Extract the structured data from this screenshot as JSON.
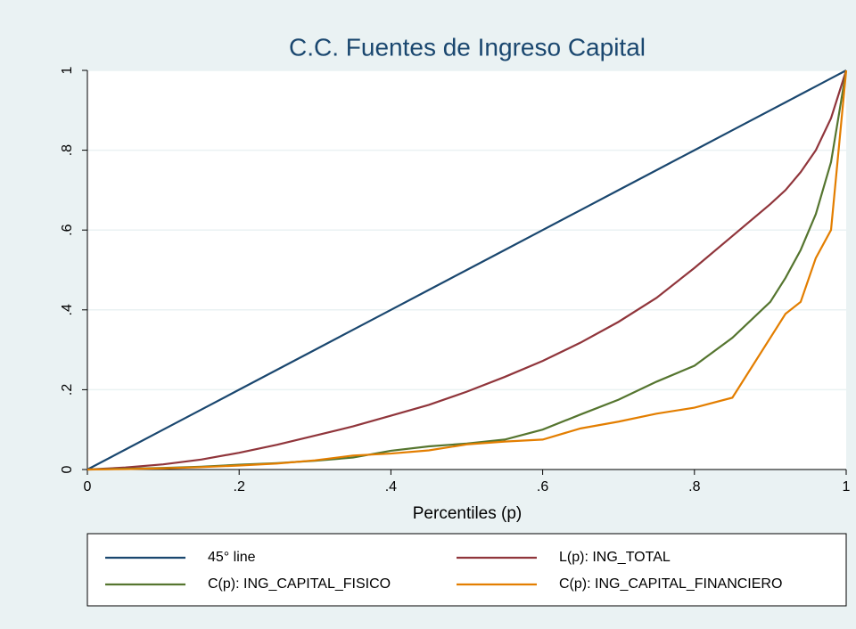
{
  "chart_data": {
    "type": "line",
    "title": "C.C. Fuentes de Ingreso Capital",
    "x_label": "Percentiles (p)",
    "x": [
      0,
      0.05,
      0.1,
      0.15,
      0.2,
      0.25,
      0.3,
      0.35,
      0.4,
      0.45,
      0.5,
      0.55,
      0.6,
      0.65,
      0.7,
      0.75,
      0.8,
      0.85,
      0.9,
      0.92,
      0.94,
      0.96,
      0.98,
      1
    ],
    "series": [
      {
        "name": "45° line",
        "color": "#1a476f",
        "values": [
          0,
          0.05,
          0.1,
          0.15,
          0.2,
          0.25,
          0.3,
          0.35,
          0.4,
          0.45,
          0.5,
          0.55,
          0.6,
          0.65,
          0.7,
          0.75,
          0.8,
          0.85,
          0.9,
          0.92,
          0.94,
          0.96,
          0.98,
          1
        ]
      },
      {
        "name": "L(p): ING_TOTAL",
        "color": "#90353b",
        "values": [
          0,
          0.005,
          0.013,
          0.025,
          0.042,
          0.062,
          0.085,
          0.108,
          0.135,
          0.162,
          0.195,
          0.232,
          0.272,
          0.318,
          0.37,
          0.43,
          0.505,
          0.585,
          0.665,
          0.7,
          0.745,
          0.8,
          0.88,
          1
        ]
      },
      {
        "name": "C(p): ING_CAPITAL_FISICO",
        "color": "#55752f",
        "values": [
          0,
          0.002,
          0.004,
          0.007,
          0.012,
          0.016,
          0.022,
          0.03,
          0.047,
          0.058,
          0.065,
          0.075,
          0.1,
          0.138,
          0.175,
          0.22,
          0.26,
          0.33,
          0.42,
          0.48,
          0.55,
          0.64,
          0.77,
          1
        ]
      },
      {
        "name": "C(p): ING_CAPITAL_FINANCIERO",
        "color": "#e37e00",
        "values": [
          0,
          0.001,
          0.003,
          0.006,
          0.01,
          0.015,
          0.023,
          0.035,
          0.04,
          0.048,
          0.063,
          0.07,
          0.075,
          0.103,
          0.12,
          0.14,
          0.155,
          0.18,
          0.33,
          0.39,
          0.42,
          0.53,
          0.6,
          1
        ]
      }
    ],
    "xlim": [
      0,
      1
    ],
    "ylim": [
      0,
      1
    ],
    "xticks": [
      0,
      {
        "value": 0.2,
        "label": ".2"
      },
      {
        "value": 0.4,
        "label": ".4"
      },
      {
        "value": 0.6,
        "label": ".6"
      },
      {
        "value": 0.8,
        "label": ".8"
      },
      1
    ],
    "yticks": [
      0,
      {
        "value": 0.2,
        "label": ".2"
      },
      {
        "value": 0.4,
        "label": ".4"
      },
      {
        "value": 0.6,
        "label": ".6"
      },
      {
        "value": 0.8,
        "label": ".8"
      },
      1
    ],
    "grid": true,
    "legend": "bottom"
  }
}
